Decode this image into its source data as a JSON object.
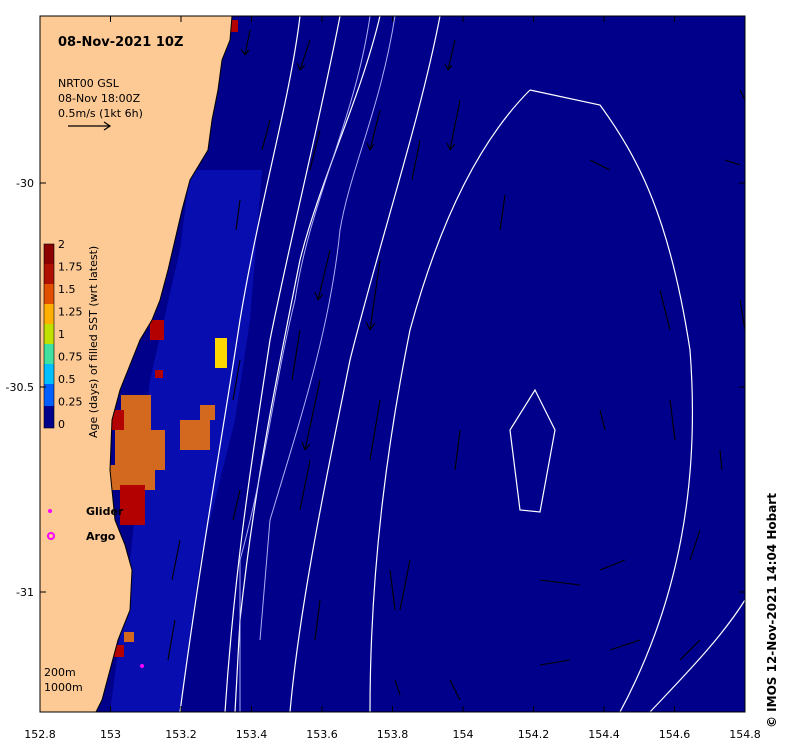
{
  "title": "08-Nov-2021 10Z",
  "current_legend": {
    "source": "NRT00 GSL",
    "time": "08-Nov 18:00Z",
    "scale": "0.5m/s (1kt 6h)"
  },
  "colorbar": {
    "label": "Age (days) of filled SST (wrt latest)",
    "ticks": [
      "2",
      "1.75",
      "1.5",
      "1.25",
      "1",
      "0.75",
      "0.5",
      "0.25",
      "0"
    ],
    "colors": [
      "#00008b",
      "#0000ff",
      "#0080ff",
      "#00c0ff",
      "#40e0a0",
      "#c0e000",
      "#ffd000",
      "#ff9000",
      "#e05000",
      "#b01000",
      "#8b0000"
    ]
  },
  "markers": {
    "glider": "Glider",
    "argo": "Argo"
  },
  "isobaths": [
    "200m",
    "1000m"
  ],
  "credit": "© IMOS 12-Nov-2021 14:04 Hobart",
  "axes": {
    "x_ticks": [
      "152.8",
      "153",
      "153.2",
      "153.4",
      "153.6",
      "153.8",
      "154",
      "154.2",
      "154.4",
      "154.6",
      "154.8"
    ],
    "y_ticks": [
      "-30",
      "-30.5",
      "-31"
    ]
  },
  "colors": {
    "land": "#fdc995",
    "ocean": "#00008b",
    "age_high": "#b30000",
    "age_mid": "#d2691e",
    "age_yellow": "#ffd700",
    "contour": "#ffffff",
    "marker": "#ff00ff"
  }
}
